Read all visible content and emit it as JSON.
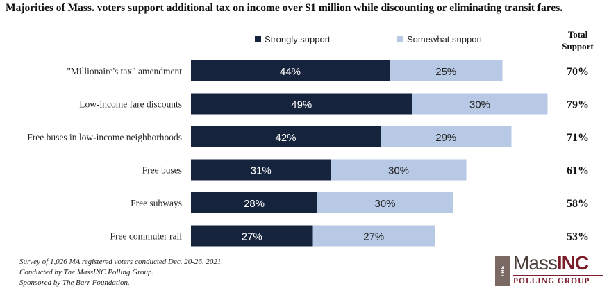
{
  "title": "Majorities of Mass. voters support additional tax on income over $1 million while discounting or eliminating transit fares.",
  "chart_data": {
    "type": "bar",
    "orientation": "horizontal",
    "stacked": true,
    "categories": [
      "\"Millionaire's tax\" amendment",
      "Low-income fare discounts",
      "Free buses in low-income neighborhoods",
      "Free buses",
      "Free subways",
      "Free commuter rail"
    ],
    "series": [
      {
        "name": "Strongly support",
        "values": [
          44,
          49,
          42,
          31,
          28,
          27
        ],
        "labels": [
          "44%",
          "49%",
          "42%",
          "31%",
          "28%",
          "27%"
        ],
        "color": "#15233d"
      },
      {
        "name": "Somewhat support",
        "values": [
          25,
          30,
          29,
          30,
          30,
          27
        ],
        "labels": [
          "25%",
          "30%",
          "29%",
          "30%",
          "30%",
          "27%"
        ],
        "color": "#b7c9e4"
      }
    ],
    "total_header": "Total Support",
    "totals": [
      "70%",
      "79%",
      "71%",
      "61%",
      "58%",
      "53%"
    ],
    "xlim": [
      0,
      80
    ],
    "legend_position": "top"
  },
  "footnotes": {
    "survey": "Survey of 1,026 MA registered voters conducted Dec. 20-26, 2021.",
    "conducted": "Conducted by The MassINC Polling Group.",
    "sponsored": "Sponsored by The Barr Foundation."
  },
  "logo": {
    "the": "THE",
    "mass": "Mass",
    "inc": "INC",
    "group": "POLLING GROUP"
  }
}
